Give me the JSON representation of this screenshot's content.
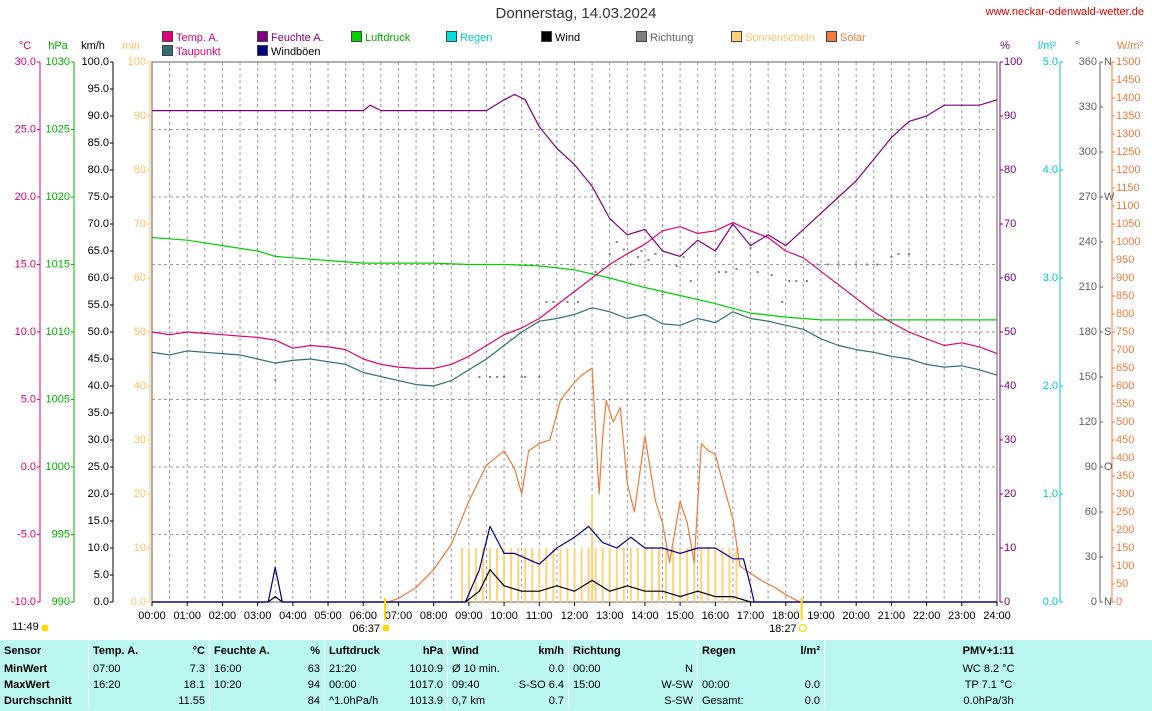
{
  "header": {
    "title": "Donnerstag, 14.03.2024",
    "site": "www.neckar-odenwald-wetter.de"
  },
  "legend": [
    {
      "label": "Temp. A.",
      "color": "#e0007a"
    },
    {
      "label": "Taupunkt",
      "color": "#2f6f6f"
    },
    {
      "label": "Feuchte A.",
      "color": "#800080"
    },
    {
      "label": "Windböen",
      "color": "#000080"
    },
    {
      "label": "Luftdruck",
      "color": "#00d000"
    },
    {
      "label": "Regen",
      "color": "#00e0e0"
    },
    {
      "label": "Wind",
      "color": "#000000"
    },
    {
      "label": "Richtung",
      "color": "#808080"
    },
    {
      "label": "Sonnenschein",
      "color": "#ffd27a"
    },
    {
      "label": "Solar",
      "color": "#f07a3c"
    }
  ],
  "axis_units": {
    "temp": "°C",
    "pressure": "hPa",
    "wind": "km/h",
    "sun": "min",
    "humidity": "%",
    "rain": "l/m²",
    "dir": "°",
    "solar": "W/m²"
  },
  "sun_times": {
    "now": "11:49",
    "sunrise": "06:37",
    "sunset": "18:27"
  },
  "chart_data": {
    "type": "line",
    "title": "Donnerstag, 14.03.2024",
    "x_ticks": [
      "00:00",
      "01:00",
      "02:00",
      "03:00",
      "04:00",
      "05:00",
      "06:00",
      "07:00",
      "08:00",
      "09:00",
      "10:00",
      "11:00",
      "12:00",
      "13:00",
      "14:00",
      "15:00",
      "16:00",
      "17:00",
      "18:00",
      "19:00",
      "20:00",
      "21:00",
      "22:00",
      "23:00",
      "24:00"
    ],
    "xlim": [
      0,
      24
    ],
    "axes": {
      "temp": {
        "range": [
          -10,
          30
        ],
        "ticks": [
          "-10.0",
          "-5.0",
          "0.0",
          "5.0",
          "10.0",
          "15.0",
          "20.0",
          "25.0",
          "30.0"
        ]
      },
      "pressure": {
        "range": [
          990,
          1030
        ],
        "ticks": [
          "990",
          "995",
          "1000",
          "1005",
          "1010",
          "1015",
          "1020",
          "1025",
          "1030"
        ]
      },
      "wind": {
        "range": [
          0,
          100
        ],
        "ticks": [
          "0.0",
          "5.0",
          "10.0",
          "15.0",
          "20.0",
          "25.0",
          "30.0",
          "35.0",
          "40.0",
          "45.0",
          "50.0",
          "55.0",
          "60.0",
          "65.0",
          "70.0",
          "75.0",
          "80.0",
          "85.0",
          "90.0",
          "95.0",
          "100.0"
        ]
      },
      "sun": {
        "range": [
          0,
          100
        ],
        "ticks": [
          "0.0",
          "10",
          "20",
          "30",
          "40",
          "50",
          "60",
          "70",
          "80",
          "90",
          "100"
        ]
      },
      "humidity": {
        "range": [
          0,
          100
        ],
        "ticks": [
          "0",
          "10",
          "20",
          "30",
          "40",
          "50",
          "60",
          "70",
          "80",
          "90",
          "100"
        ]
      },
      "rain": {
        "range": [
          0,
          5
        ],
        "ticks": [
          "0.0",
          "1.0",
          "2.0",
          "3.0",
          "4.0",
          "5.0"
        ]
      },
      "dir": {
        "range": [
          0,
          360
        ],
        "ticks": [
          "0",
          "30",
          "60",
          "90",
          "120",
          "150",
          "180",
          "210",
          "240",
          "270",
          "300",
          "330",
          "360"
        ],
        "labels": [
          "N",
          "",
          "",
          "O",
          "",
          "",
          "S",
          "",
          "",
          "W",
          "",
          "",
          "N"
        ]
      },
      "solar": {
        "range": [
          0,
          1500
        ],
        "ticks": [
          "0",
          "50",
          "100",
          "150",
          "200",
          "250",
          "300",
          "350",
          "400",
          "450",
          "500",
          "550",
          "600",
          "650",
          "700",
          "750",
          "800",
          "850",
          "900",
          "950",
          "1000",
          "1050",
          "1100",
          "1150",
          "1200",
          "1250",
          "1300",
          "1350",
          "1400",
          "1450",
          "1500"
        ]
      }
    },
    "series": [
      {
        "name": "Temp. A.",
        "axis": "temp",
        "color": "#e0007a",
        "x": [
          0,
          0.5,
          1,
          1.5,
          2,
          2.5,
          3,
          3.5,
          4,
          4.5,
          5,
          5.5,
          6,
          6.5,
          7,
          7.5,
          8,
          8.5,
          9,
          9.5,
          10,
          10.5,
          11,
          11.5,
          12,
          12.5,
          13,
          13.5,
          14,
          14.5,
          15,
          15.5,
          16,
          16.5,
          17,
          17.5,
          18,
          18.5,
          19,
          19.5,
          20,
          20.5,
          21,
          21.5,
          22,
          22.5,
          23,
          23.5,
          24
        ],
        "y": [
          10.0,
          9.8,
          10.0,
          9.9,
          9.8,
          9.7,
          9.6,
          9.4,
          8.8,
          9.0,
          8.9,
          8.7,
          8.0,
          7.6,
          7.4,
          7.3,
          7.3,
          7.6,
          8.2,
          9.0,
          9.8,
          10.3,
          11.0,
          12.0,
          13.0,
          14.0,
          15.0,
          15.8,
          16.5,
          17.5,
          17.8,
          17.3,
          17.5,
          18.1,
          17.5,
          17.0,
          16.0,
          15.5,
          14.5,
          13.5,
          12.5,
          11.5,
          10.7,
          10.0,
          9.5,
          9.0,
          9.2,
          8.9,
          8.4
        ]
      },
      {
        "name": "Taupunkt",
        "axis": "temp",
        "color": "#2f6f6f",
        "x": [
          0,
          0.5,
          1,
          1.5,
          2,
          2.5,
          3,
          3.5,
          4,
          4.5,
          5,
          5.5,
          6,
          6.5,
          7,
          7.5,
          8,
          8.5,
          9,
          9.5,
          10,
          10.5,
          11,
          11.5,
          12,
          12.5,
          13,
          13.5,
          14,
          14.5,
          15,
          15.5,
          16,
          16.5,
          17,
          17.5,
          18,
          18.5,
          19,
          19.5,
          20,
          20.5,
          21,
          21.5,
          22,
          22.5,
          23,
          23.5,
          24
        ],
        "y": [
          8.5,
          8.3,
          8.6,
          8.5,
          8.4,
          8.3,
          8.0,
          7.7,
          7.9,
          8.0,
          7.8,
          7.6,
          7.0,
          6.7,
          6.4,
          6.1,
          6.0,
          6.4,
          7.2,
          8.0,
          9.0,
          10.0,
          10.8,
          11.0,
          11.3,
          11.8,
          11.5,
          11.0,
          11.3,
          10.6,
          10.5,
          11.0,
          10.7,
          11.5,
          11.0,
          10.8,
          10.5,
          10.2,
          9.5,
          9.0,
          8.7,
          8.5,
          8.2,
          8.0,
          7.6,
          7.4,
          7.5,
          7.2,
          6.8
        ]
      },
      {
        "name": "Feuchte A.",
        "axis": "humidity",
        "color": "#800080",
        "x": [
          0,
          1,
          2,
          3,
          4,
          5,
          6,
          6.2,
          6.5,
          7,
          8,
          9,
          9.5,
          10,
          10.3,
          10.6,
          11,
          11.5,
          12,
          12.5,
          13,
          13.5,
          14,
          14.5,
          15,
          15.5,
          16,
          16.5,
          17,
          17.5,
          18,
          18.5,
          19,
          19.5,
          20,
          20.5,
          21,
          21.5,
          22,
          22.5,
          23,
          23.5,
          24
        ],
        "y": [
          91,
          91,
          91,
          91,
          91,
          91,
          91,
          92,
          91,
          91,
          91,
          91,
          91,
          93,
          94,
          93,
          88,
          84,
          81,
          77,
          71,
          68,
          69,
          65,
          64,
          67,
          65,
          70,
          66,
          68,
          66,
          69,
          72,
          75,
          78,
          82,
          86,
          89,
          90,
          92,
          92,
          92,
          93
        ]
      },
      {
        "name": "Luftdruck",
        "axis": "pressure",
        "color": "#00d000",
        "x": [
          0,
          1,
          2,
          3,
          3.5,
          4,
          5,
          6,
          7,
          8,
          9,
          10,
          11,
          12,
          13,
          14,
          15,
          16,
          17,
          18,
          19,
          20,
          21,
          22,
          23,
          24
        ],
        "y": [
          1017.0,
          1016.8,
          1016.4,
          1016.0,
          1015.6,
          1015.5,
          1015.3,
          1015.1,
          1015.1,
          1015.1,
          1015.0,
          1015.0,
          1014.9,
          1014.6,
          1014.0,
          1013.3,
          1012.7,
          1012.1,
          1011.4,
          1011.1,
          1010.9,
          1010.9,
          1010.9,
          1010.9,
          1010.9,
          1010.9
        ]
      },
      {
        "name": "Windböen",
        "axis": "wind",
        "color": "#000080",
        "x": [
          0,
          3.3,
          3.5,
          3.7,
          4,
          8.9,
          9.3,
          9.6,
          10,
          10.3,
          11,
          11.5,
          12,
          12.4,
          12.8,
          13.2,
          13.6,
          14,
          14.5,
          15,
          15.5,
          16,
          16.5,
          16.8,
          17,
          17.1,
          24
        ],
        "y": [
          0,
          0,
          6.4,
          0,
          0,
          0,
          6,
          14,
          9,
          9,
          7,
          10,
          12,
          14,
          11,
          10,
          12,
          10,
          10,
          9,
          10,
          10,
          8,
          8,
          3,
          0,
          0
        ]
      },
      {
        "name": "Wind",
        "axis": "wind",
        "color": "#000000",
        "x": [
          0,
          3.3,
          3.5,
          3.7,
          4,
          8.9,
          9.3,
          9.6,
          10,
          10.5,
          11,
          11.5,
          12,
          12.5,
          13,
          13.5,
          14,
          14.5,
          15,
          15.5,
          16,
          16.5,
          17,
          24
        ],
        "y": [
          0,
          0,
          1,
          0,
          0,
          0,
          2,
          6,
          3,
          2,
          2,
          3,
          2,
          4,
          2,
          3,
          2,
          2,
          1,
          2,
          1,
          1,
          0,
          0
        ]
      },
      {
        "name": "Solar",
        "axis": "solar",
        "color": "#f07a3c",
        "x": [
          6.7,
          7,
          7.5,
          8,
          8.5,
          9,
          9.5,
          10,
          10.3,
          10.5,
          10.7,
          11,
          11.3,
          11.6,
          12,
          12.2,
          12.5,
          12.7,
          12.8,
          12.9,
          13.1,
          13.3,
          13.5,
          13.7,
          14,
          14.3,
          14.5,
          14.7,
          15,
          15.2,
          15.4,
          15.6,
          15.8,
          16,
          16.3,
          16.5,
          16.7,
          17,
          17.3,
          17.7,
          18,
          18.4
        ],
        "y": [
          0,
          10,
          40,
          90,
          160,
          280,
          380,
          420,
          370,
          300,
          420,
          440,
          450,
          560,
          610,
          630,
          650,
          300,
          460,
          560,
          500,
          540,
          330,
          250,
          460,
          280,
          220,
          110,
          280,
          220,
          110,
          440,
          420,
          410,
          300,
          230,
          100,
          80,
          60,
          40,
          20,
          0
        ]
      }
    ],
    "sunshine": {
      "axis": "sun",
      "color": "#ffd27a",
      "x_start": 8.8,
      "x_end": 16.7,
      "step": 0.2,
      "value": 10,
      "peak_x": 12.5,
      "peak_value": 20
    },
    "direction_points": {
      "axis": "dir",
      "color": "#808080",
      "x": [
        3.5,
        9.3,
        9.6,
        9.8,
        10,
        10.2,
        10.5,
        10.6,
        11,
        11.2,
        11.4,
        11.6,
        11.8,
        12.1,
        12.6,
        12.8,
        13.0,
        13.2,
        13.4,
        13.6,
        13.8,
        13.9,
        14.1,
        14.3,
        14.5,
        14.9,
        15.1,
        15.3,
        16.1,
        16.3,
        16.6,
        17.0,
        17.2,
        17.6,
        17.9,
        18.1,
        18.3,
        18.6,
        18.9,
        19.2,
        19.5,
        20.0,
        20.3,
        20.6,
        21.0,
        21.2,
        21.5
      ],
      "y": [
        148,
        150,
        150,
        150,
        150,
        175,
        150,
        150,
        150,
        200,
        200,
        200,
        200,
        200,
        220,
        222,
        232,
        240,
        235,
        225,
        230,
        234,
        228,
        232,
        205,
        224,
        230,
        214,
        220,
        220,
        222,
        236,
        220,
        218,
        200,
        214,
        214,
        214,
        225,
        225,
        225,
        225,
        225,
        225,
        230,
        232,
        232
      ]
    }
  },
  "stats": {
    "headers": {
      "sensor": "Sensor",
      "temp": "Temp. A.",
      "temp_unit": "°C",
      "hum": "Feuchte A.",
      "hum_unit": "%",
      "press": "Luftdruck",
      "press_unit": "hPa",
      "wind": "Wind",
      "wind_unit": "km/h",
      "dir": "Richtung",
      "rain": "Regen",
      "rain_unit": "l/m²",
      "pmv": "PMV+1:11"
    },
    "rows": [
      {
        "label": "MinWert",
        "temp_time": "07:00",
        "temp_val": "7.3",
        "hum_time": "16:00",
        "hum_val": "63",
        "press_time": "21:20",
        "press_val": "1010.9",
        "wind_time": "Ø 10 min.",
        "wind_val": "0.0",
        "dir_time": "00:00",
        "dir_val": "N",
        "rain_time": "",
        "rain_val": "",
        "pmv": "WC 8.2 °C"
      },
      {
        "label": "MaxWert",
        "temp_time": "16:20",
        "temp_val": "18.1",
        "hum_time": "10:20",
        "hum_val": "94",
        "press_time": "00:00",
        "press_val": "1017.0",
        "wind_time": "09:40",
        "wind_val": "S-SO 6.4",
        "dir_time": "15:00",
        "dir_val": "W-SW",
        "rain_time": "00:00",
        "rain_val": "0.0",
        "pmv": "TP 7.1 °C"
      },
      {
        "label": "Durchschnitt",
        "temp_time": "",
        "temp_val": "11.55",
        "hum_time": "",
        "hum_val": "84",
        "press_time": "^1.0hPa/h",
        "press_val": "1013.9",
        "wind_time": "0,7 km",
        "wind_val": "0.7",
        "dir_time": "",
        "dir_val": "S-SW",
        "rain_time": "Gesamt:",
        "rain_val": "0.0",
        "pmv": "0.0hPa/3h"
      }
    ]
  }
}
